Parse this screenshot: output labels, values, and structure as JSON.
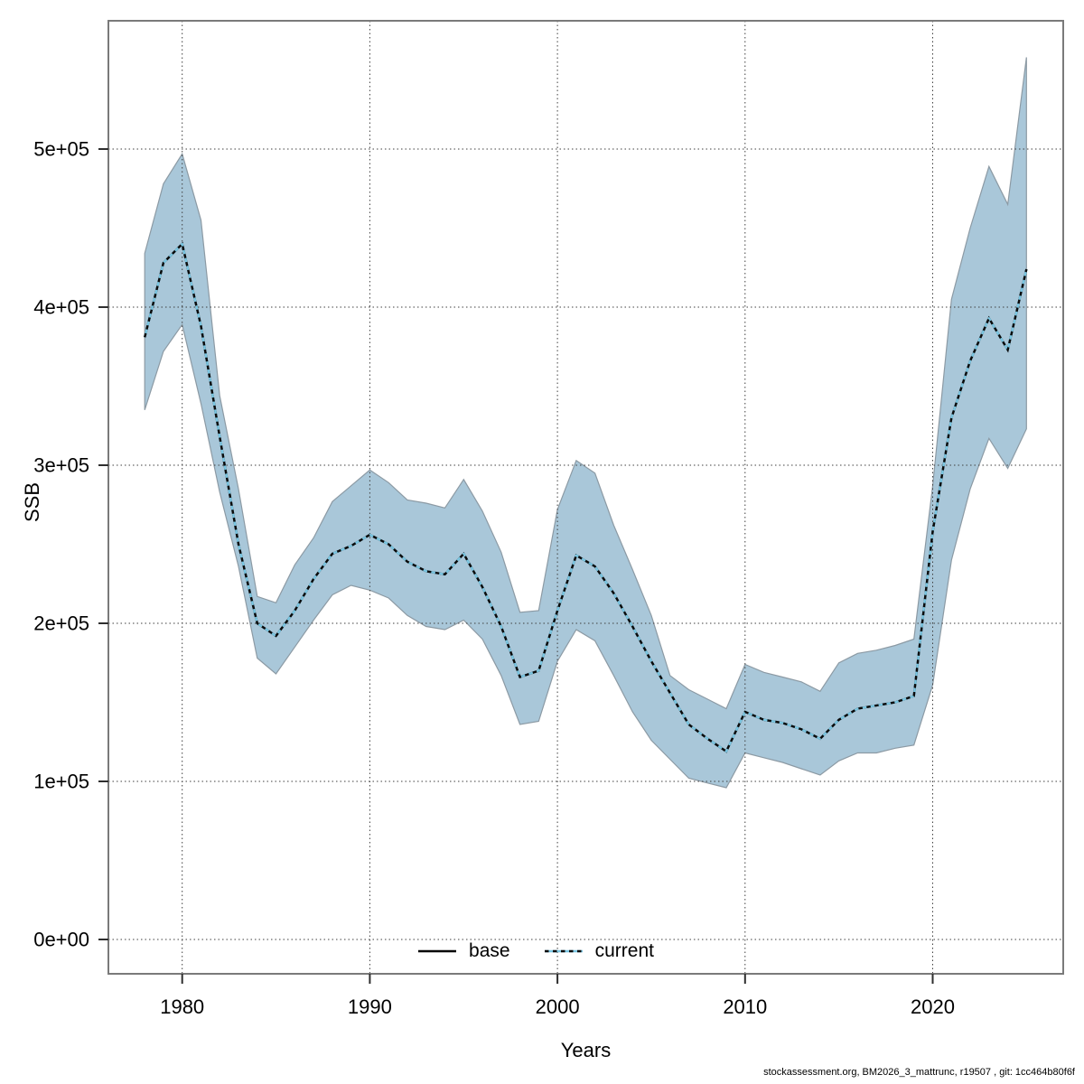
{
  "chart_data": {
    "type": "area",
    "title": "",
    "xlabel": "Years",
    "ylabel": "SSB",
    "grid": true,
    "legend_position": "bottom-center",
    "band_color": "#A9C7D9",
    "band_edge_color": "#8C9AA4",
    "median_line_colors": [
      "#7AC6E2",
      "#0A0A0A"
    ],
    "xlim": [
      1976.1,
      2026.9
    ],
    "ylim": [
      -22000,
      581000
    ],
    "x_ticks": {
      "values": [
        1980,
        1990,
        2000,
        2010,
        2020
      ],
      "labels": [
        "1980",
        "1990",
        "2000",
        "2010",
        "2020"
      ]
    },
    "y_ticks": {
      "values": [
        0,
        100000,
        200000,
        300000,
        400000,
        500000
      ],
      "labels": [
        "0e+00",
        "1e+05",
        "2e+05",
        "3e+05",
        "4e+05",
        "5e+05"
      ]
    },
    "legend": [
      {
        "label": "base",
        "style": "solid",
        "color": "#000000"
      },
      {
        "label": "current",
        "style": "dotted",
        "color": "#7AC6E2"
      }
    ],
    "x": [
      1978,
      1979,
      1980,
      1981,
      1982,
      1983,
      1984,
      1985,
      1986,
      1987,
      1988,
      1989,
      1990,
      1991,
      1992,
      1993,
      1994,
      1995,
      1996,
      1997,
      1998,
      1999,
      2000,
      2001,
      2002,
      2003,
      2004,
      2005,
      2006,
      2007,
      2008,
      2009,
      2010,
      2011,
      2012,
      2013,
      2014,
      2015,
      2016,
      2017,
      2018,
      2019,
      2020,
      2021,
      2022,
      2023,
      2024,
      2025
    ],
    "series": [
      {
        "name": "current",
        "median": [
          381000,
          428000,
          440000,
          388000,
          318000,
          250000,
          200000,
          192000,
          208000,
          228000,
          244000,
          249000,
          256000,
          250000,
          239000,
          233000,
          231000,
          244000,
          223000,
          198000,
          166000,
          170000,
          208000,
          243000,
          236000,
          219000,
          198000,
          176000,
          156000,
          136000,
          127000,
          119000,
          144000,
          139000,
          137000,
          133000,
          127000,
          139000,
          146000,
          148000,
          150000,
          154000,
          258000,
          330000,
          366000,
          393000,
          373000,
          424000
        ],
        "lower": [
          335000,
          372000,
          389000,
          339000,
          283000,
          236000,
          178000,
          168000,
          185000,
          202000,
          218000,
          224000,
          221000,
          216000,
          205000,
          198000,
          196000,
          202000,
          190000,
          167000,
          136000,
          138000,
          176000,
          196000,
          189000,
          167000,
          144000,
          126000,
          114000,
          102000,
          99000,
          96000,
          118000,
          115000,
          112000,
          108000,
          104000,
          113000,
          118000,
          118000,
          121000,
          123000,
          161000,
          240000,
          285000,
          317000,
          298000,
          323000
        ],
        "upper": [
          434000,
          478000,
          497000,
          455000,
          344000,
          285000,
          217000,
          213000,
          237000,
          254000,
          277000,
          287000,
          297000,
          289000,
          278000,
          276000,
          273000,
          291000,
          271000,
          245000,
          207000,
          208000,
          272000,
          303000,
          295000,
          262000,
          234000,
          205000,
          167000,
          158000,
          152000,
          146000,
          174000,
          169000,
          166000,
          163000,
          157000,
          175000,
          181000,
          183000,
          186000,
          190000,
          287000,
          405000,
          450000,
          489000,
          465000,
          558000
        ]
      }
    ]
  },
  "footer": {
    "text": "stockassessment.org, BM2026_3_mattrunc, r19507 , git: 1cc464b80f6f"
  }
}
